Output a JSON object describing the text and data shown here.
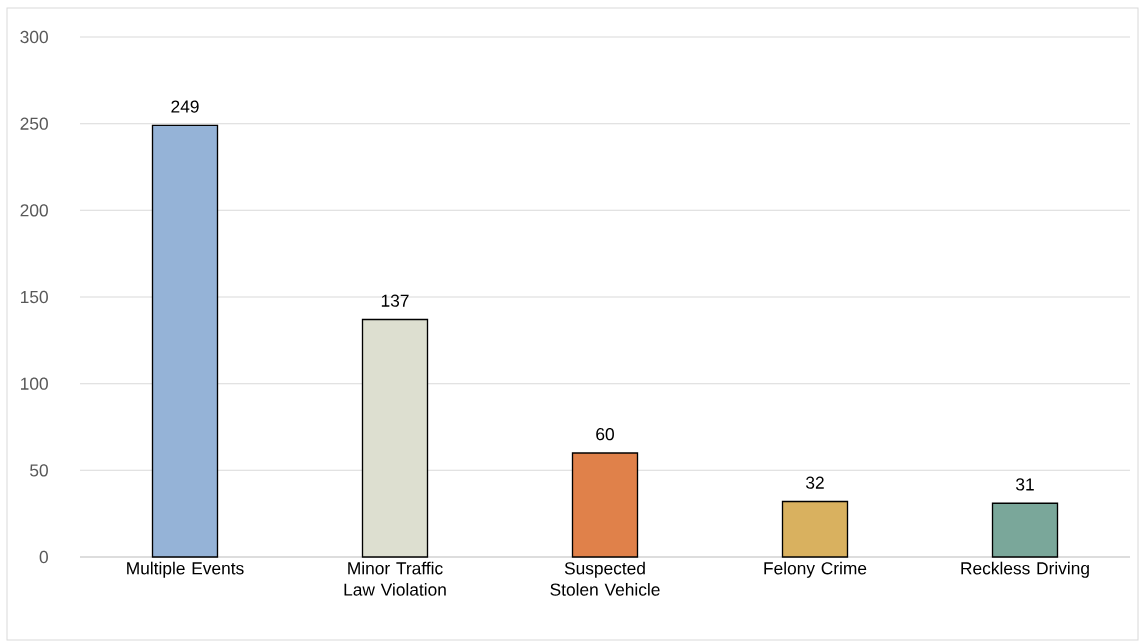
{
  "chart_data": {
    "type": "bar",
    "categories": [
      "Multiple Events",
      "Minor Traffic Law Violation",
      "Suspected Stolen Vehicle",
      "Felony Crime",
      "Reckless Driving"
    ],
    "values": [
      249,
      137,
      60,
      32,
      31
    ],
    "colors": [
      "#95b3d7",
      "#dddfd0",
      "#e0814a",
      "#d9b15f",
      "#7aa79a"
    ],
    "ylim": [
      0,
      300
    ],
    "yticks": [
      0,
      50,
      100,
      150,
      200,
      250,
      300
    ],
    "grid": "y",
    "data_labels": true
  }
}
